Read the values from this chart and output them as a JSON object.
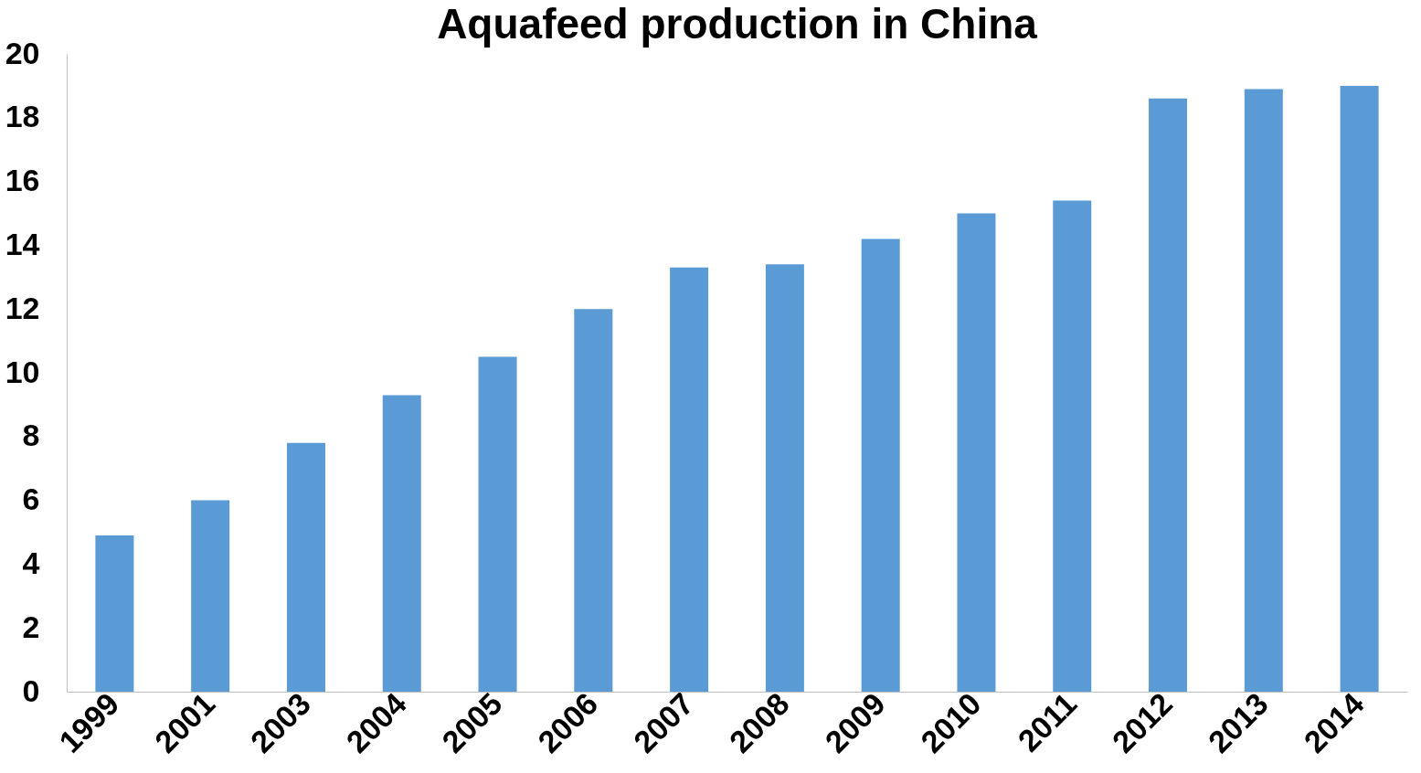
{
  "chart_data": {
    "type": "bar",
    "title": "Aquafeed production in China",
    "categories": [
      "1999",
      "2001",
      "2003",
      "2004",
      "2005",
      "2006",
      "2007",
      "2008",
      "2009",
      "2010",
      "2011",
      "2012",
      "2013",
      "2014"
    ],
    "values": [
      4.9,
      6.0,
      7.8,
      9.3,
      10.5,
      12.0,
      13.3,
      13.4,
      14.2,
      15.0,
      15.4,
      18.6,
      18.9,
      19.0
    ],
    "color": "#5b9bd5",
    "ylim": [
      0,
      20
    ],
    "yticks": [
      0,
      2,
      4,
      6,
      8,
      10,
      12,
      14,
      16,
      18,
      20
    ],
    "grid": false
  }
}
